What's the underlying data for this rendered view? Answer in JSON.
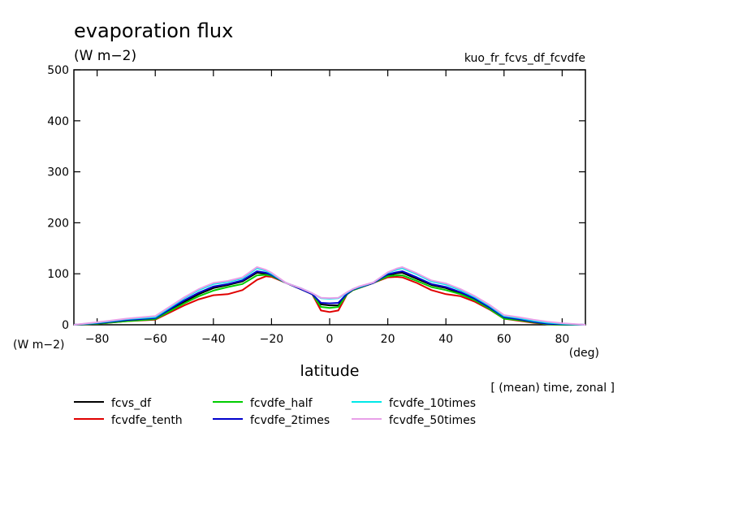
{
  "chart_data": {
    "type": "line",
    "title": "evaporation flux",
    "title_unit": "(W m−2)",
    "run_name": "kuo_fr_fcvs_df_fcvdfe",
    "ylabel_unit": "(W m−2)",
    "xlabel": "latitude",
    "xlabel_unit": "(deg)",
    "note": "[ (mean) time, zonal ]",
    "xlim": [
      -88,
      88
    ],
    "ylim": [
      0,
      500
    ],
    "xticks": [
      -80,
      -60,
      -40,
      -20,
      0,
      20,
      40,
      60,
      80
    ],
    "xtick_labels": [
      "−80",
      "−60",
      "−40",
      "−20",
      "0",
      "20",
      "40",
      "60",
      "80"
    ],
    "yticks": [
      0,
      100,
      200,
      300,
      400,
      500
    ],
    "ytick_labels": [
      "0",
      "100",
      "200",
      "300",
      "400",
      "500"
    ],
    "x": [
      -88,
      -80,
      -70,
      -60,
      -50,
      -45,
      -40,
      -35,
      -30,
      -25,
      -22,
      -20,
      -15,
      -10,
      -6,
      -3,
      0,
      3,
      6,
      8,
      10,
      15,
      20,
      23,
      25,
      30,
      35,
      40,
      45,
      50,
      55,
      60,
      65,
      70,
      75,
      80,
      88
    ],
    "series": [
      {
        "name": "fcvs_df",
        "color": "#000000",
        "values": [
          0,
          2,
          8,
          12,
          45,
          60,
          72,
          78,
          85,
          102,
          100,
          97,
          82,
          70,
          60,
          40,
          38,
          38,
          60,
          68,
          72,
          82,
          97,
          101,
          102,
          90,
          78,
          72,
          62,
          50,
          32,
          14,
          10,
          5,
          2,
          1,
          0
        ]
      },
      {
        "name": "fcvdfe_tenth",
        "color": "#e00000",
        "values": [
          0,
          2,
          7,
          10,
          38,
          50,
          58,
          60,
          68,
          88,
          95,
          94,
          82,
          70,
          60,
          28,
          25,
          28,
          60,
          68,
          72,
          82,
          93,
          94,
          93,
          82,
          68,
          60,
          56,
          45,
          30,
          12,
          8,
          4,
          1,
          0,
          0
        ]
      },
      {
        "name": "fcvdfe_half",
        "color": "#00cc00",
        "values": [
          0,
          2,
          7,
          11,
          42,
          56,
          67,
          74,
          80,
          97,
          98,
          96,
          82,
          70,
          60,
          35,
          33,
          35,
          60,
          68,
          72,
          82,
          95,
          97,
          97,
          86,
          74,
          68,
          60,
          48,
          31,
          12,
          9,
          5,
          1,
          0,
          0
        ]
      },
      {
        "name": "fcvdfe_2times",
        "color": "#0000cc",
        "values": [
          0,
          3,
          9,
          13,
          48,
          63,
          75,
          80,
          87,
          105,
          102,
          98,
          82,
          70,
          60,
          43,
          42,
          43,
          61,
          69,
          73,
          82,
          99,
          103,
          105,
          93,
          80,
          74,
          64,
          51,
          34,
          15,
          11,
          6,
          2,
          1,
          0
        ]
      },
      {
        "name": "fcvdfe_10times",
        "color": "#00e8e8",
        "values": [
          0,
          4,
          11,
          15,
          52,
          68,
          80,
          84,
          91,
          111,
          106,
          100,
          82,
          72,
          62,
          52,
          51,
          52,
          63,
          70,
          74,
          83,
          102,
          108,
          111,
          99,
          85,
          79,
          68,
          54,
          37,
          17,
          13,
          8,
          4,
          2,
          0
        ]
      },
      {
        "name": "fcvdfe_50times",
        "color": "#e8a0e8",
        "values": [
          0,
          5,
          12,
          17,
          54,
          70,
          82,
          86,
          93,
          113,
          108,
          102,
          82,
          72,
          62,
          53,
          52,
          53,
          64,
          70,
          75,
          83,
          103,
          110,
          113,
          101,
          87,
          81,
          70,
          56,
          39,
          19,
          15,
          10,
          6,
          3,
          0
        ]
      }
    ]
  }
}
